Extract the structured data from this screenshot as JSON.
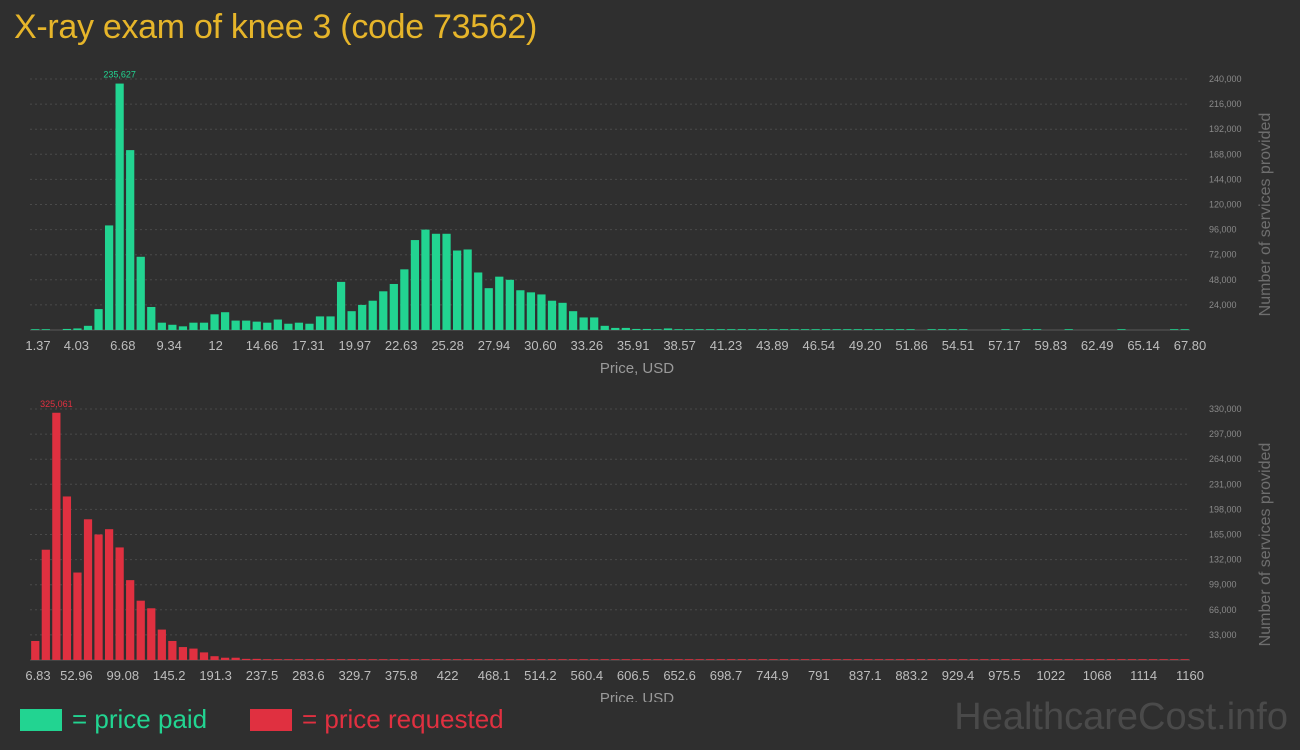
{
  "title": "X-ray exam of knee 3 (code 73562)",
  "colors": {
    "paid": "#22d491",
    "requested": "#e03040",
    "title": "#e6b52a"
  },
  "legend": {
    "paid": "= price paid",
    "requested": "= price requested"
  },
  "watermark": "HealthcareCost.info",
  "chart_data": [
    {
      "type": "bar",
      "name": "paid",
      "xlabel": "Price, USD",
      "ylabel": "Number of services provided",
      "ylim": [
        0,
        240000
      ],
      "yticks": [
        24000,
        48000,
        72000,
        96000,
        120000,
        144000,
        168000,
        192000,
        216000,
        240000
      ],
      "ytick_labels": [
        "24,000",
        "48,000",
        "72,000",
        "96,000",
        "120,000",
        "144,000",
        "168,000",
        "192,000",
        "216,000",
        "240,000"
      ],
      "xtick_labels": [
        "1.37",
        "4.03",
        "6.68",
        "9.34",
        "12",
        "14.66",
        "17.31",
        "19.97",
        "22.63",
        "25.28",
        "27.94",
        "30.60",
        "33.26",
        "35.91",
        "38.57",
        "41.23",
        "43.89",
        "46.54",
        "49.20",
        "51.86",
        "54.51",
        "57.17",
        "59.83",
        "62.49",
        "65.14",
        "67.80"
      ],
      "peak_label": "235,627",
      "values": [
        500,
        500,
        0,
        1000,
        1500,
        4000,
        20000,
        100000,
        235627,
        172000,
        70000,
        22000,
        7000,
        5000,
        3500,
        7000,
        7000,
        15000,
        17000,
        9000,
        9000,
        8000,
        7000,
        10000,
        6000,
        7000,
        6000,
        13000,
        13000,
        46000,
        18000,
        24000,
        28000,
        37000,
        44000,
        58000,
        86000,
        96000,
        92000,
        92000,
        76000,
        77000,
        55000,
        40000,
        51000,
        48000,
        38000,
        36000,
        34000,
        28000,
        26000,
        18000,
        12000,
        12000,
        4000,
        2000,
        2000,
        1000,
        1000,
        500,
        1500,
        500,
        500,
        500,
        500,
        500,
        500,
        500,
        500,
        500,
        500,
        500,
        500,
        500,
        500,
        500,
        500,
        500,
        500,
        500,
        500,
        500,
        500,
        500,
        0,
        500,
        500,
        500,
        500,
        0,
        0,
        0,
        500,
        0,
        500,
        500,
        0,
        0,
        500,
        0,
        0,
        0,
        0,
        500,
        0,
        0,
        0,
        0,
        500,
        500
      ]
    },
    {
      "type": "bar",
      "name": "requested",
      "xlabel": "Price, USD",
      "ylabel": "Number of services provided",
      "ylim": [
        0,
        330000
      ],
      "yticks": [
        33000,
        66000,
        99000,
        132000,
        165000,
        198000,
        231000,
        264000,
        297000,
        330000
      ],
      "ytick_labels": [
        "33,000",
        "66,000",
        "99,000",
        "132,000",
        "165,000",
        "198,000",
        "231,000",
        "264,000",
        "297,000",
        "330,000"
      ],
      "xtick_labels": [
        "6.83",
        "52.96",
        "99.08",
        "145.2",
        "191.3",
        "237.5",
        "283.6",
        "329.7",
        "375.8",
        "422",
        "468.1",
        "514.2",
        "560.4",
        "606.5",
        "652.6",
        "698.7",
        "744.9",
        "791",
        "837.1",
        "883.2",
        "929.4",
        "975.5",
        "1022",
        "1068",
        "1114",
        "1160"
      ],
      "peak_label": "325,061",
      "values": [
        25000,
        145000,
        325061,
        215000,
        115000,
        185000,
        165000,
        172000,
        148000,
        105000,
        78000,
        68000,
        40000,
        25000,
        17000,
        15000,
        10000,
        5000,
        3000,
        3000,
        1500,
        1500,
        1000,
        1000,
        1000,
        800,
        600,
        500,
        500,
        400,
        400,
        300,
        300,
        300,
        300,
        250,
        250,
        200,
        200,
        200,
        200,
        200,
        200,
        200,
        150,
        150,
        150,
        150,
        150,
        150,
        150,
        150,
        100,
        100,
        100,
        100,
        100,
        100,
        100,
        100,
        100,
        100,
        100,
        100,
        100,
        100,
        100,
        100,
        100,
        100,
        100,
        100,
        100,
        100,
        100,
        100,
        100,
        100,
        100,
        100,
        100,
        100,
        100,
        100,
        100,
        100,
        100,
        100,
        100,
        100,
        100,
        100,
        100,
        100,
        100,
        100,
        100,
        100,
        100,
        100,
        100,
        100,
        100,
        100,
        100,
        100,
        100,
        100,
        100,
        100
      ]
    }
  ]
}
